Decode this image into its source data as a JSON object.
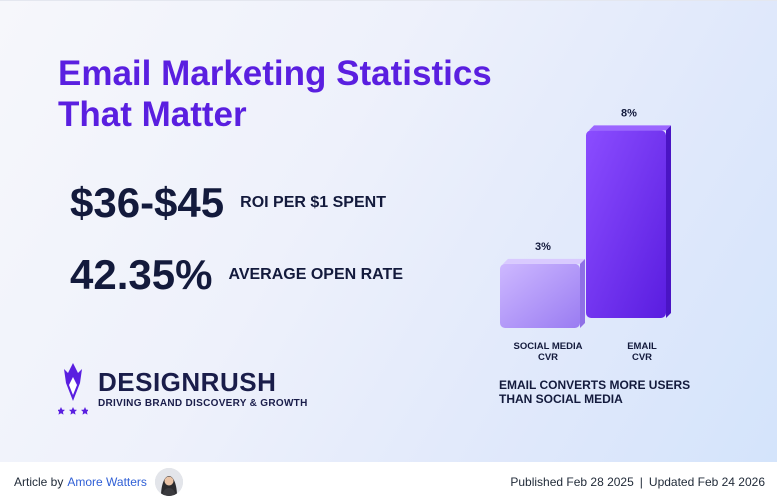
{
  "title": {
    "line1": "Email Marketing Statistics",
    "line2": "That Matter"
  },
  "stats": [
    {
      "value": "$36-$45",
      "label": "ROI PER $1 SPENT"
    },
    {
      "value": "42.35%",
      "label": "AVERAGE OPEN RATE"
    }
  ],
  "brand": {
    "name": "DESIGNRUSH",
    "tagline": "DRIVING BRAND DISCOVERY & GROWTH"
  },
  "chart_data": {
    "type": "bar",
    "title": "",
    "categories": [
      "SOCIAL MEDIA CVR",
      "EMAIL CVR"
    ],
    "category_lines": [
      [
        "SOCIAL MEDIA",
        "CVR"
      ],
      [
        "EMAIL",
        "CVR"
      ]
    ],
    "values": [
      3,
      8
    ],
    "value_labels": [
      "3%",
      "8%"
    ],
    "unit": "%",
    "ylim": [
      0,
      8.5
    ],
    "xlabel": "",
    "ylabel": "",
    "colors": [
      "#b79cf8",
      "#6c2df0"
    ],
    "annotation": [
      "EMAIL CONVERTS MORE USERS",
      "THAN SOCIAL MEDIA"
    ]
  },
  "footer": {
    "article_by": "Article by",
    "author": "Amore Watters",
    "published": "Published Feb 28 2025",
    "separator": "|",
    "updated": "Updated Feb 24 2026"
  }
}
